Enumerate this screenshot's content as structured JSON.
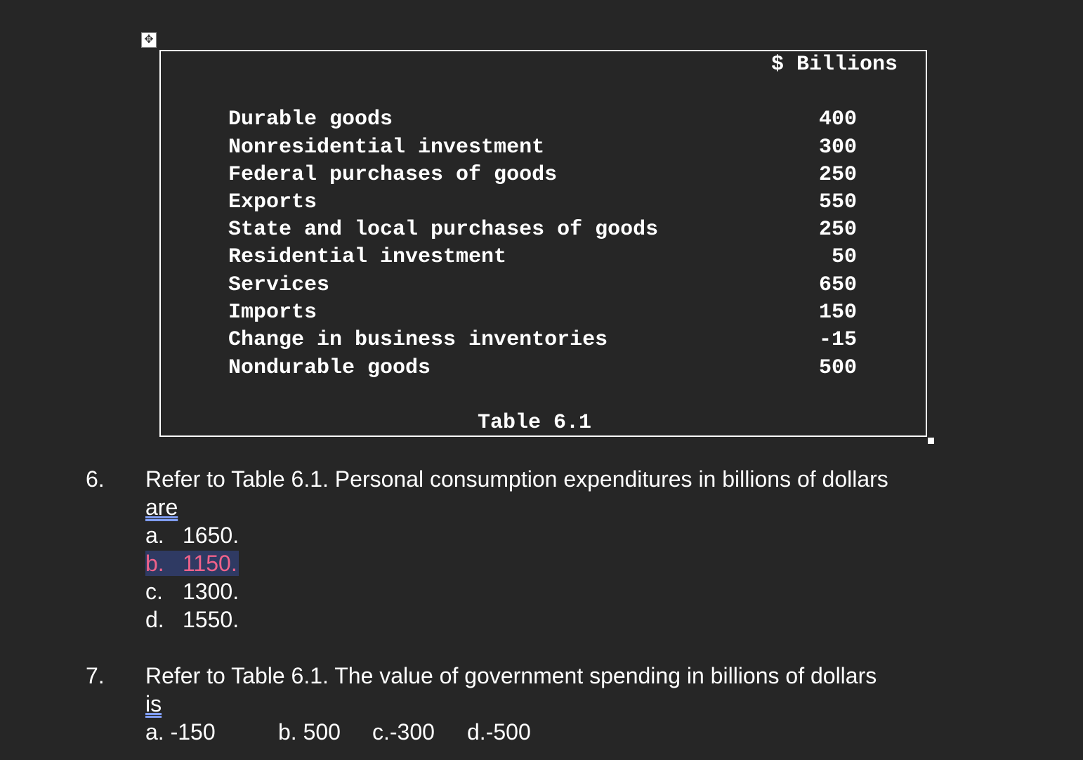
{
  "table": {
    "header": "$ Billions",
    "rows": [
      {
        "label": "Durable goods",
        "value": "400"
      },
      {
        "label": "Nonresidential investment",
        "value": "300"
      },
      {
        "label": "Federal purchases of goods",
        "value": "250"
      },
      {
        "label": "Exports",
        "value": "550"
      },
      {
        "label": "State and local purchases of goods",
        "value": "250"
      },
      {
        "label": "Residential investment",
        "value": "50"
      },
      {
        "label": "Services",
        "value": "650"
      },
      {
        "label": "Imports",
        "value": "150"
      },
      {
        "label": "Change in business inventories",
        "value": "-15"
      },
      {
        "label": "Nondurable goods",
        "value": "500"
      }
    ],
    "caption": "Table 6.1"
  },
  "questions": [
    {
      "number": "6.",
      "line1": "Refer to Table 6.1. Personal consumption expenditures in billions of dollars",
      "line2": "are",
      "choices": [
        {
          "letter": "a.",
          "text": "1650."
        },
        {
          "letter": "b.",
          "text": "1150."
        },
        {
          "letter": "c.",
          "text": "1300."
        },
        {
          "letter": "d.",
          "text": "1550."
        }
      ]
    },
    {
      "number": "7.",
      "line1": "Refer to Table 6.1. The value of government spending in billions of dollars",
      "line2": "is",
      "choices": [
        {
          "text": "a.  -150"
        },
        {
          "text": "b. 500"
        },
        {
          "text": "c.-300"
        },
        {
          "text": "d.-500"
        }
      ]
    }
  ],
  "colors": {
    "background": "#262626",
    "highlight_bg": "#2f3a63",
    "highlight_text": "#f0628a",
    "grammar_underline": "#7f9cf0"
  },
  "icons": [
    "move-handle-icon",
    "resize-handle-icon"
  ]
}
